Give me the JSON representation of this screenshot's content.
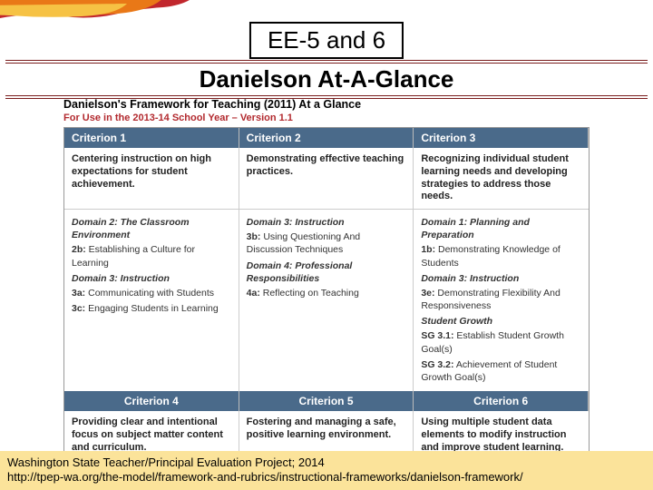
{
  "decoration": {
    "colors": {
      "orange": "#e97817",
      "red": "#c1272d",
      "yellow": "#f6c244"
    }
  },
  "ee_label": "EE-5 and 6",
  "title": "Danielson At-A-Glance",
  "framework": {
    "heading": "Danielson's Framework for Teaching (2011) At a Glance",
    "subheading": "For Use in the 2013-14 School Year – Version 1.1",
    "header_bg": "#4a6a8a",
    "header_fg": "#ffffff",
    "accent": "#b2292e",
    "row1": {
      "headers": [
        "Criterion 1",
        "Criterion 2",
        "Criterion 3"
      ],
      "descs": [
        "Centering instruction on high expectations for student achievement.",
        "Demonstrating effective teaching practices.",
        "Recognizing individual student learning needs and developing strategies to address those needs."
      ],
      "cells": [
        {
          "blocks": [
            {
              "domain": "Domain 2: The Classroom Environment",
              "items": [
                {
                  "code": "2b:",
                  "text": "Establishing a Culture for Learning"
                }
              ]
            },
            {
              "domain": "Domain 3: Instruction",
              "items": [
                {
                  "code": "3a:",
                  "text": "Communicating with Students"
                },
                {
                  "code": "3c:",
                  "text": "Engaging Students in Learning"
                }
              ]
            }
          ]
        },
        {
          "blocks": [
            {
              "domain": "Domain 3: Instruction",
              "items": [
                {
                  "code": "3b:",
                  "text": "Using Questioning And Discussion Techniques"
                }
              ]
            },
            {
              "domain": "Domain 4: Professional Responsibilities",
              "items": [
                {
                  "code": "4a:",
                  "text": "Reflecting on Teaching"
                }
              ]
            }
          ]
        },
        {
          "blocks": [
            {
              "domain": "Domain 1: Planning and Preparation",
              "items": [
                {
                  "code": "1b:",
                  "text": "Demonstrating Knowledge of Students"
                }
              ]
            },
            {
              "domain": "Domain 3: Instruction",
              "items": [
                {
                  "code": "3e:",
                  "text": "Demonstrating Flexibility And Responsiveness"
                }
              ]
            },
            {
              "domain": "Student Growth",
              "items": [
                {
                  "code": "SG 3.1:",
                  "text": "Establish Student Growth Goal(s)"
                },
                {
                  "code": "SG 3.2:",
                  "text": "Achievement of Student Growth Goal(s)"
                }
              ]
            }
          ]
        }
      ]
    },
    "row2": {
      "headers": [
        "Criterion 4",
        "Criterion 5",
        "Criterion 6"
      ],
      "descs": [
        "Providing clear and intentional focus on subject matter content and curriculum.",
        "Fostering and managing a safe, positive learning environment.",
        "Using multiple student data elements to modify instruction and improve student learning."
      ]
    }
  },
  "footer": {
    "line1": "Washington State Teacher/Principal Evaluation Project; 2014",
    "line2": "http://tpep-wa.org/the-model/framework-and-rubrics/instructional-frameworks/danielson-framework/",
    "bg": "#fbe39a"
  }
}
